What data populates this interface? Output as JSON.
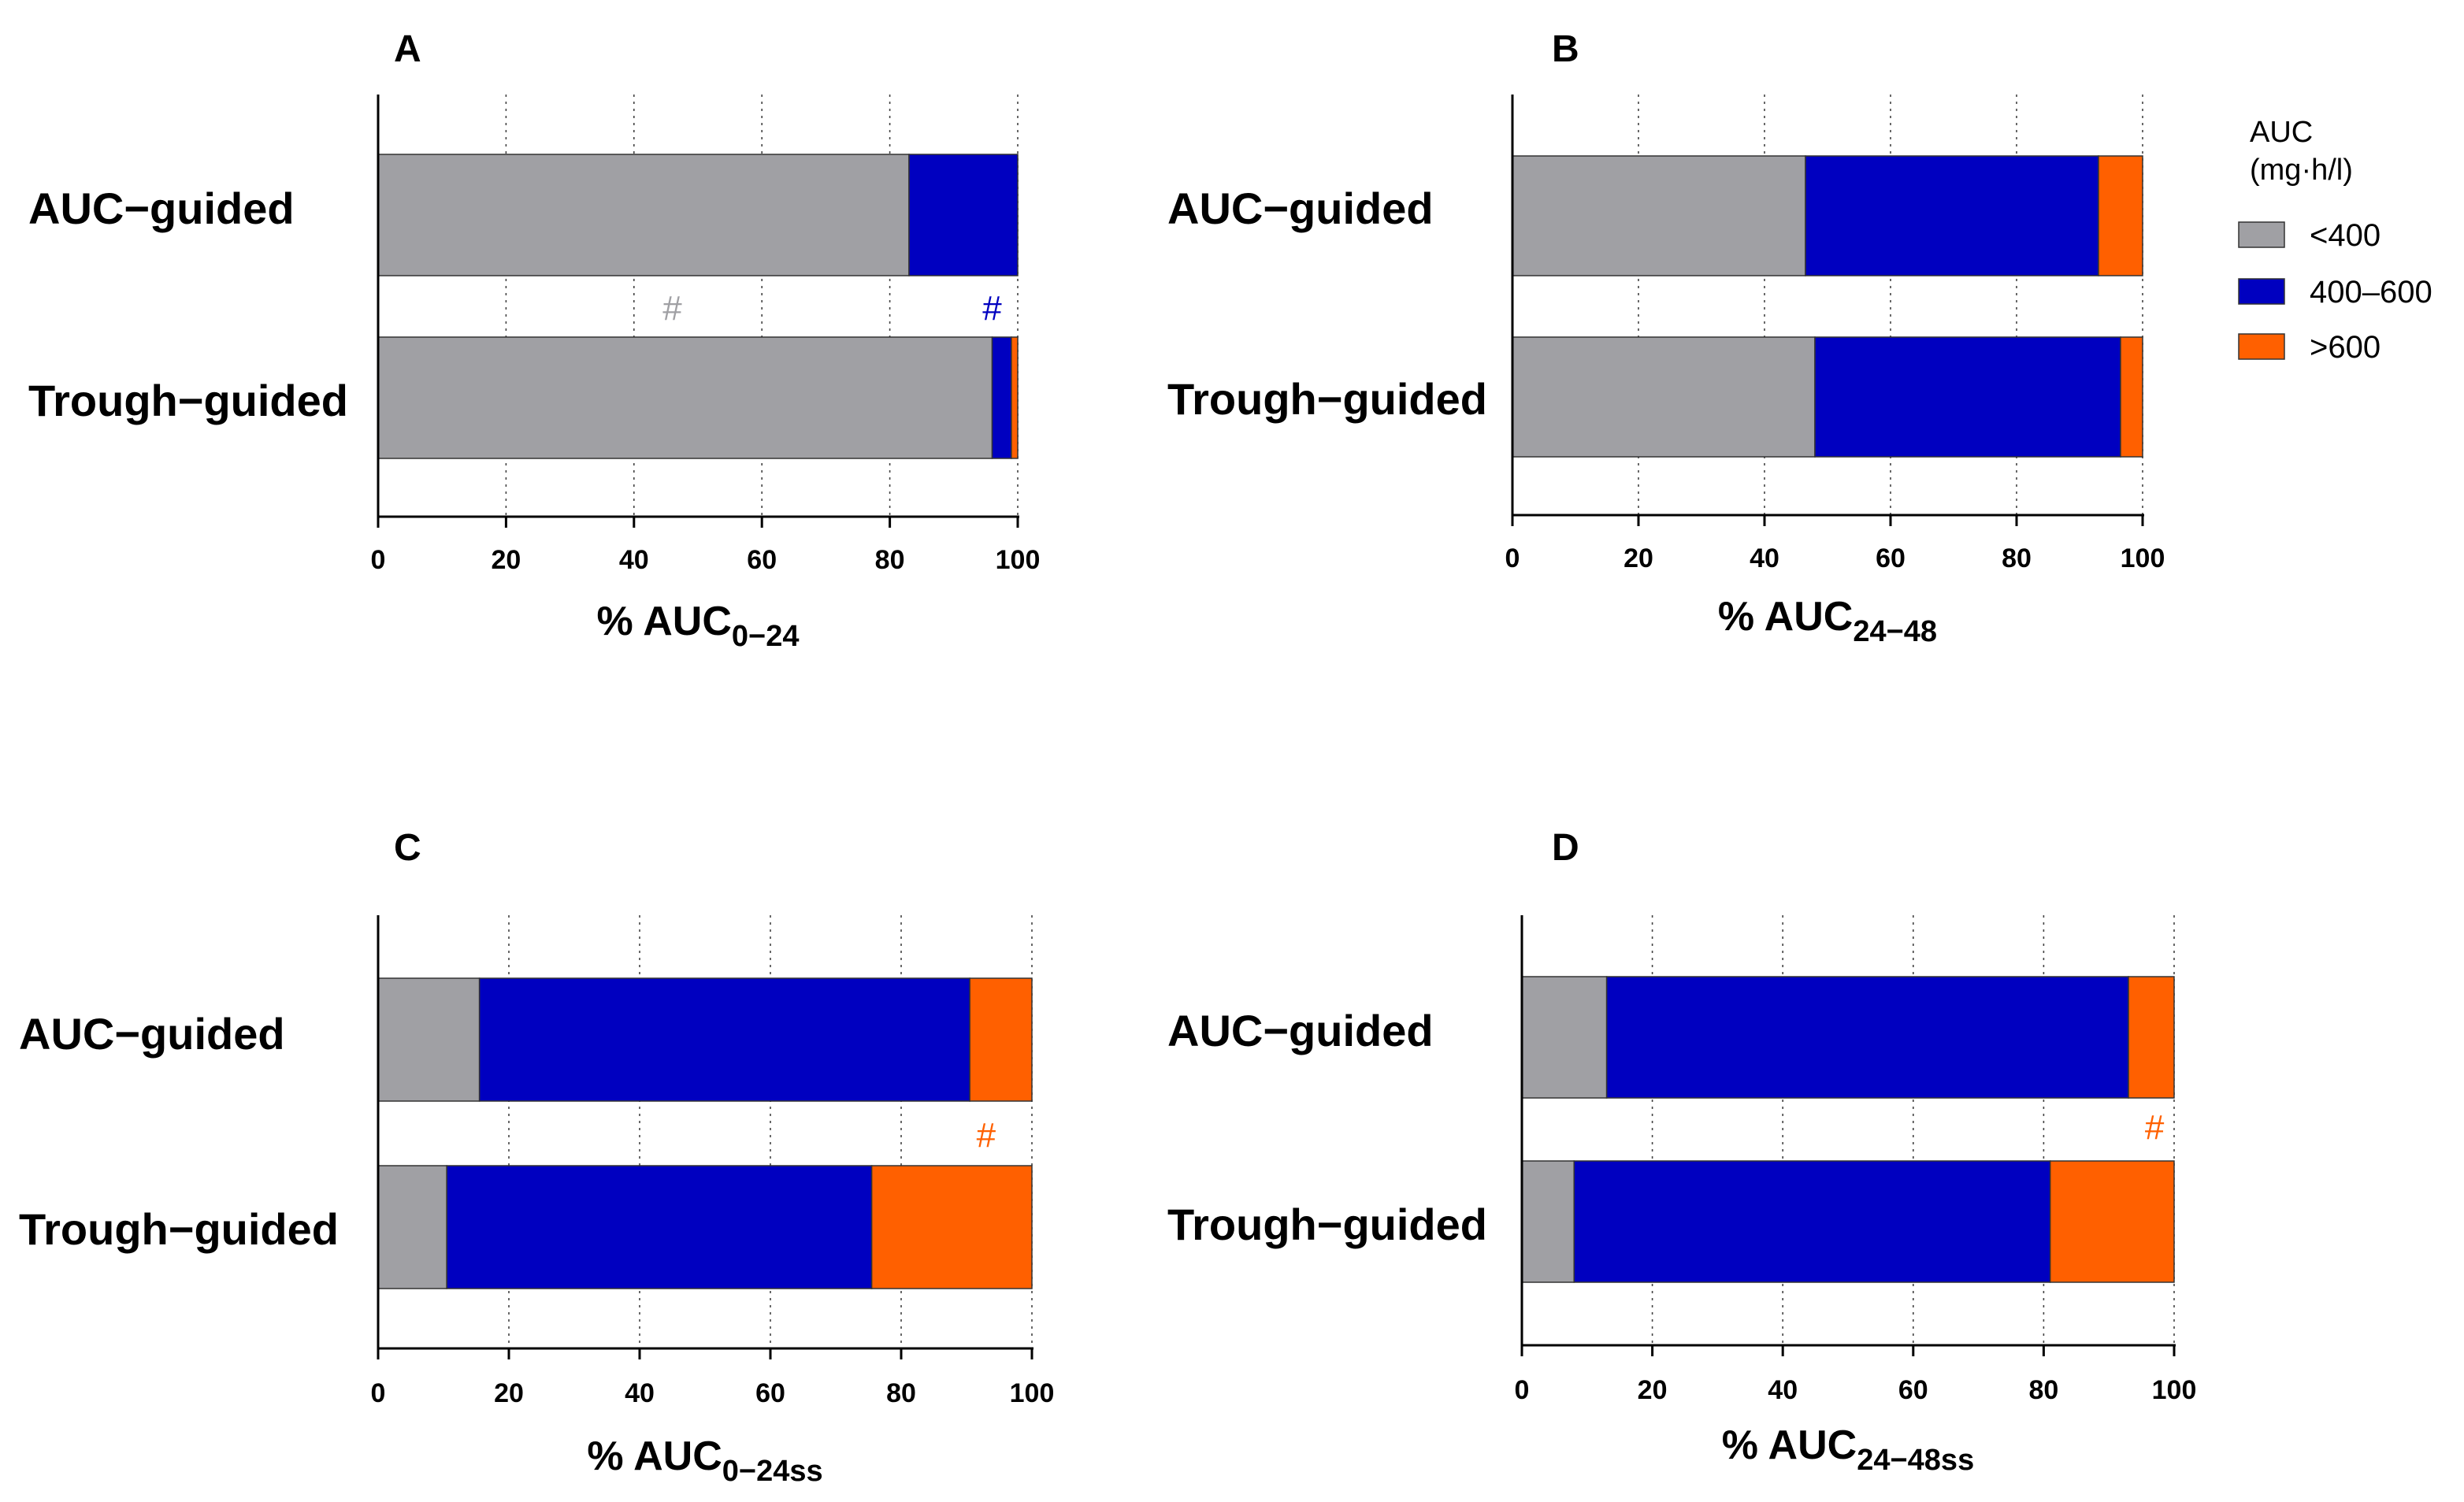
{
  "legend": {
    "title_line1": "AUC",
    "title_line2": "(mg·h/l)",
    "entries": [
      {
        "label": "<400",
        "color": "#a0a0a4"
      },
      {
        "label": "400–600",
        "color": "#0000c0"
      },
      {
        "label": ">600",
        "color": "#ff6000"
      }
    ]
  },
  "chart_data": [
    {
      "type": "bar",
      "orientation": "horizontal",
      "stacked": true,
      "panel_label": "A",
      "title": "",
      "categories": [
        "AUC−guided",
        "Trough−guided"
      ],
      "series": [
        {
          "name": "<400",
          "values": [
            83,
            96
          ]
        },
        {
          "name": "400–600",
          "values": [
            17,
            3
          ]
        },
        {
          "name": ">600",
          "values": [
            0,
            1
          ]
        }
      ],
      "xlabel_main": "% AUC",
      "xlabel_sub": "0−24",
      "xlim": [
        0,
        100
      ],
      "xticks": [
        "0",
        "20",
        "40",
        "60",
        "80",
        "100"
      ],
      "grid": "vertical dotted",
      "annotations": [
        {
          "text": "#",
          "series": "<400",
          "x": 46,
          "color": "#a0a0a4"
        },
        {
          "text": "#",
          "series": "400–600",
          "x": 96,
          "color": "#0000c0"
        }
      ]
    },
    {
      "type": "bar",
      "orientation": "horizontal",
      "stacked": true,
      "panel_label": "B",
      "title": "",
      "categories": [
        "AUC−guided",
        "Trough−guided"
      ],
      "series": [
        {
          "name": "<400",
          "values": [
            46.5,
            48
          ]
        },
        {
          "name": "400–600",
          "values": [
            46.5,
            48.5
          ]
        },
        {
          "name": ">600",
          "values": [
            7,
            3.5
          ]
        }
      ],
      "xlabel_main": "% AUC",
      "xlabel_sub": "24−48",
      "xlim": [
        0,
        100
      ],
      "xticks": [
        "0",
        "20",
        "40",
        "60",
        "80",
        "100"
      ],
      "grid": "vertical dotted",
      "annotations": []
    },
    {
      "type": "bar",
      "orientation": "horizontal",
      "stacked": true,
      "panel_label": "C",
      "title": "",
      "categories": [
        "AUC−guided",
        "Trough−guided"
      ],
      "series": [
        {
          "name": "<400",
          "values": [
            15.5,
            10.5
          ]
        },
        {
          "name": "400–600",
          "values": [
            75,
            65
          ]
        },
        {
          "name": ">600",
          "values": [
            9.5,
            24.5
          ]
        }
      ],
      "xlabel_main": "% AUC",
      "xlabel_sub": "0−24ss",
      "xlim": [
        0,
        100
      ],
      "xticks": [
        "0",
        "20",
        "40",
        "60",
        "80",
        "100"
      ],
      "grid": "vertical dotted",
      "annotations": [
        {
          "text": "#",
          "series": ">600",
          "x": 93,
          "color": "#ff6000"
        }
      ]
    },
    {
      "type": "bar",
      "orientation": "horizontal",
      "stacked": true,
      "panel_label": "D",
      "title": "",
      "categories": [
        "AUC−guided",
        "Trough−guided"
      ],
      "series": [
        {
          "name": "<400",
          "values": [
            13,
            8
          ]
        },
        {
          "name": "400–600",
          "values": [
            80,
            73
          ]
        },
        {
          "name": ">600",
          "values": [
            7,
            19
          ]
        }
      ],
      "xlabel_main": "% AUC",
      "xlabel_sub": "24−48ss",
      "xlim": [
        0,
        100
      ],
      "xticks": [
        "0",
        "20",
        "40",
        "60",
        "80",
        "100"
      ],
      "grid": "vertical dotted",
      "annotations": [
        {
          "text": "#",
          "series": ">600",
          "x": 97,
          "color": "#ff6000"
        }
      ]
    }
  ]
}
